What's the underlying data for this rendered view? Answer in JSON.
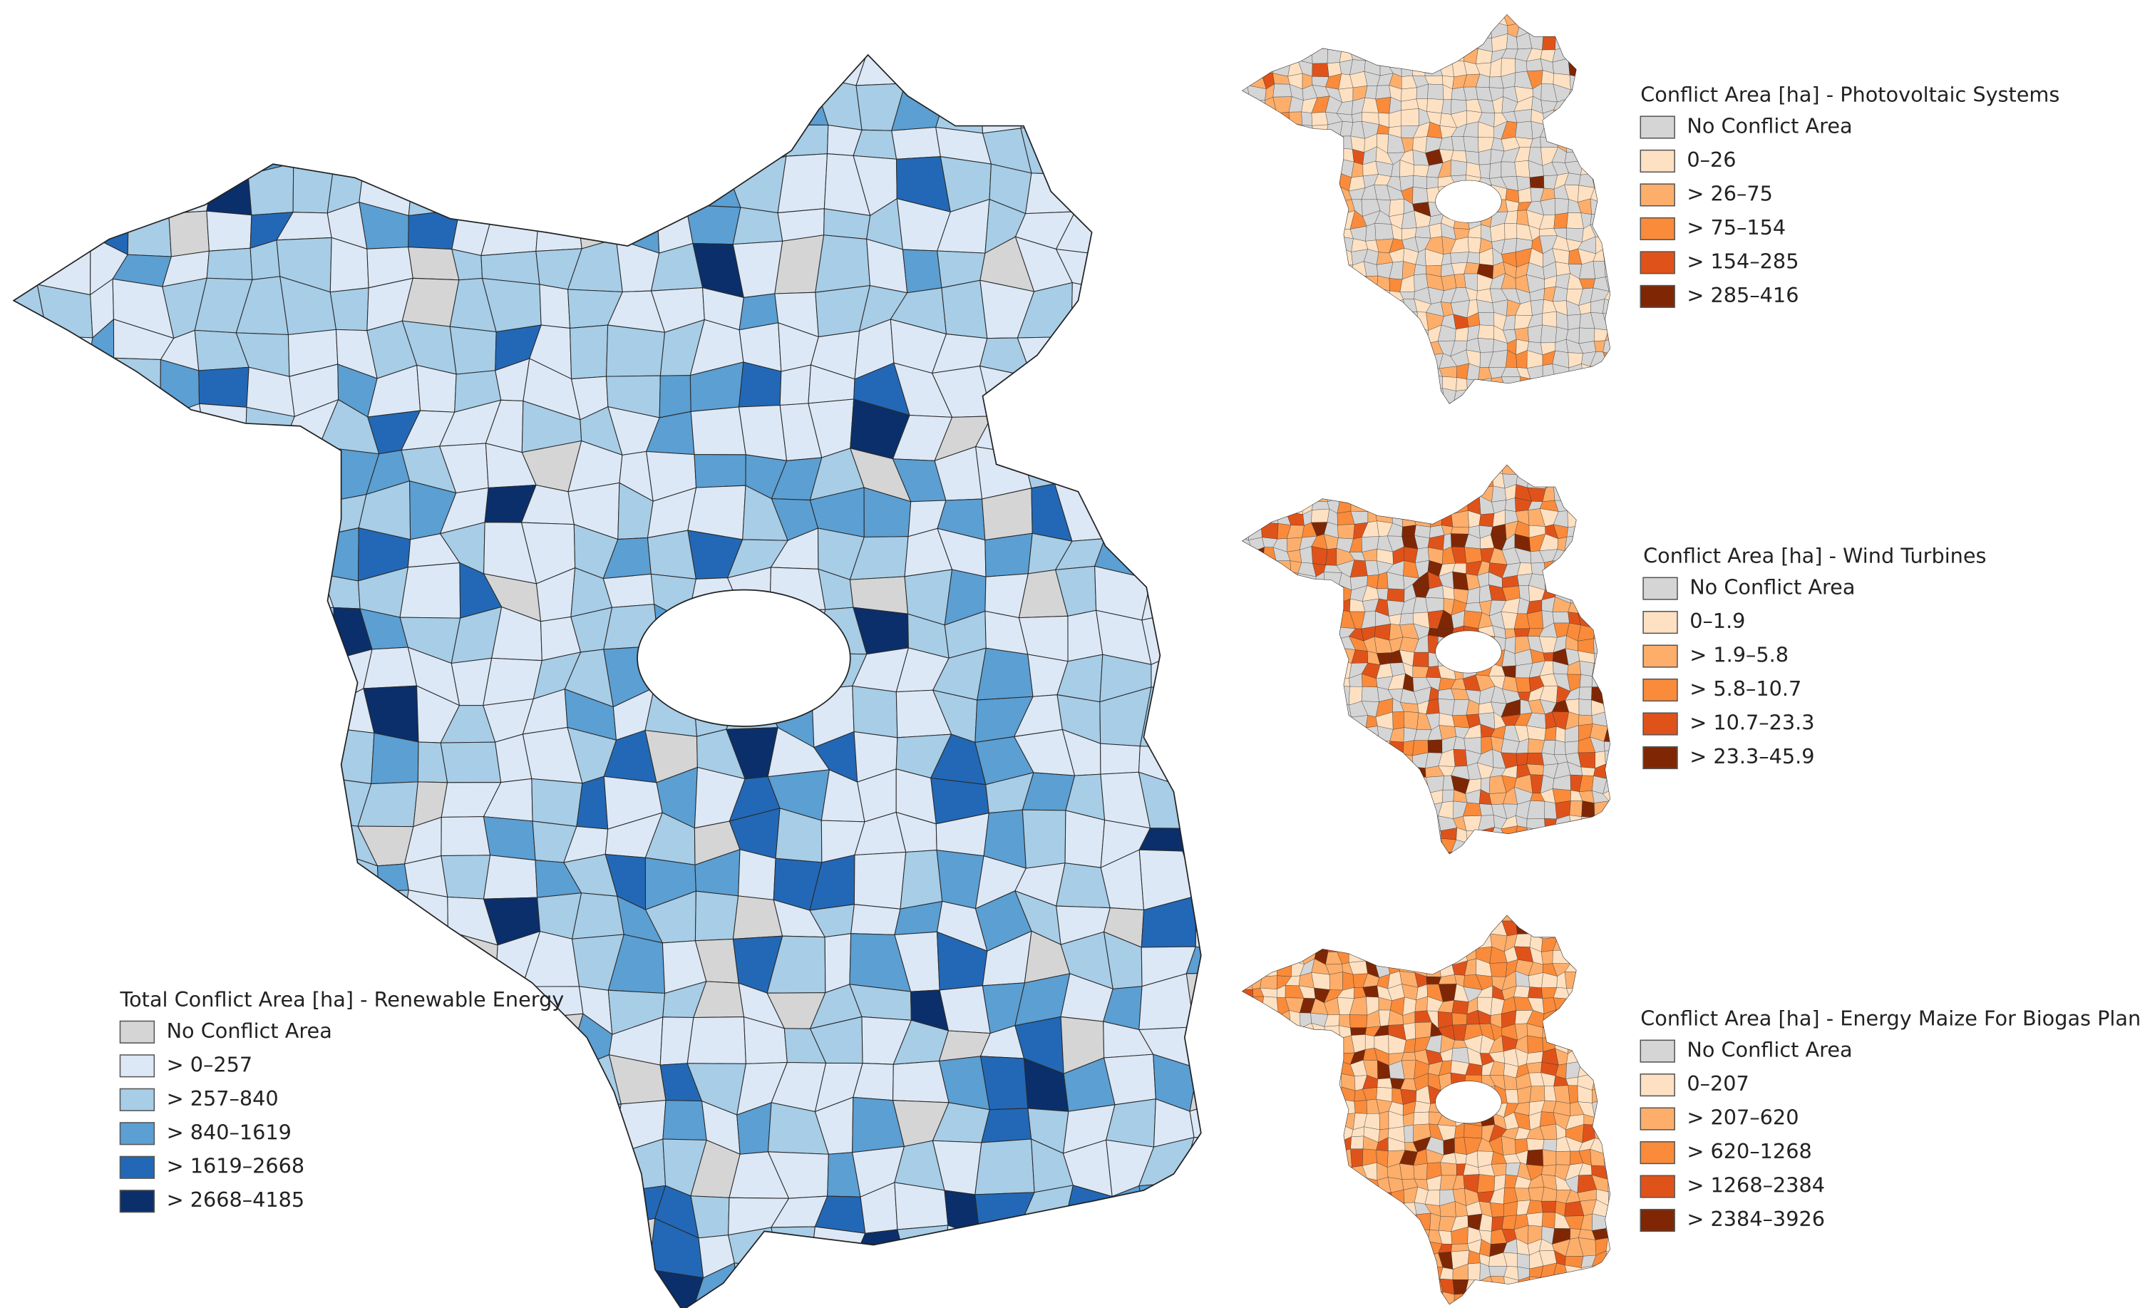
{
  "maps": [
    {
      "legend": {
        "title": "Total Conflict Area [ha] - Renewable Energy",
        "items": [
          {
            "label": "No Conflict Area",
            "color": "#d5d5d5"
          },
          {
            "label": "> 0–257",
            "color": "#dce8f6"
          },
          {
            "label": "> 257–840",
            "color": "#a7cde7"
          },
          {
            "label": "> 840–1619",
            "color": "#5b9fd3"
          },
          {
            "label": "> 1619–2668",
            "color": "#2268b6"
          },
          {
            "label": "> 2668–4185",
            "color": "#0a2f6b"
          }
        ]
      }
    },
    {
      "legend": {
        "title": "Conflict Area [ha] - Photovoltaic Systems",
        "items": [
          {
            "label": "No  Conflict Area",
            "color": "#d5d5d5"
          },
          {
            "label": "0–26",
            "color": "#fde1c2"
          },
          {
            "label": "> 26–75",
            "color": "#fdae6b"
          },
          {
            "label": "> 75–154",
            "color": "#f98b3b"
          },
          {
            "label": "> 154–285",
            "color": "#df531a"
          },
          {
            "label": "> 285–416",
            "color": "#7f2704"
          }
        ]
      }
    },
    {
      "legend": {
        "title": "Conflict Area [ha] - Wind Turbines",
        "items": [
          {
            "label": "No Conflict Area",
            "color": "#d5d5d5"
          },
          {
            "label": "0–1.9",
            "color": "#fde1c2"
          },
          {
            "label": "> 1.9–5.8",
            "color": "#fdae6b"
          },
          {
            "label": "> 5.8–10.7",
            "color": "#f98b3b"
          },
          {
            "label": "> 10.7–23.3",
            "color": "#df531a"
          },
          {
            "label": "> 23.3–45.9",
            "color": "#7f2704"
          }
        ]
      }
    },
    {
      "legend": {
        "title": "Conflict Area [ha] - Energy Maize For Biogas Plants",
        "items": [
          {
            "label": "No Conflict Area",
            "color": "#d5d5d5"
          },
          {
            "label": "0–207",
            "color": "#fde1c2"
          },
          {
            "label": "> 207–620",
            "color": "#fdae6b"
          },
          {
            "label": "> 620–1268",
            "color": "#f98b3b"
          },
          {
            "label": "> 1268–2384",
            "color": "#df531a"
          },
          {
            "label": "> 2384–3926",
            "color": "#7f2704"
          }
        ]
      }
    }
  ]
}
